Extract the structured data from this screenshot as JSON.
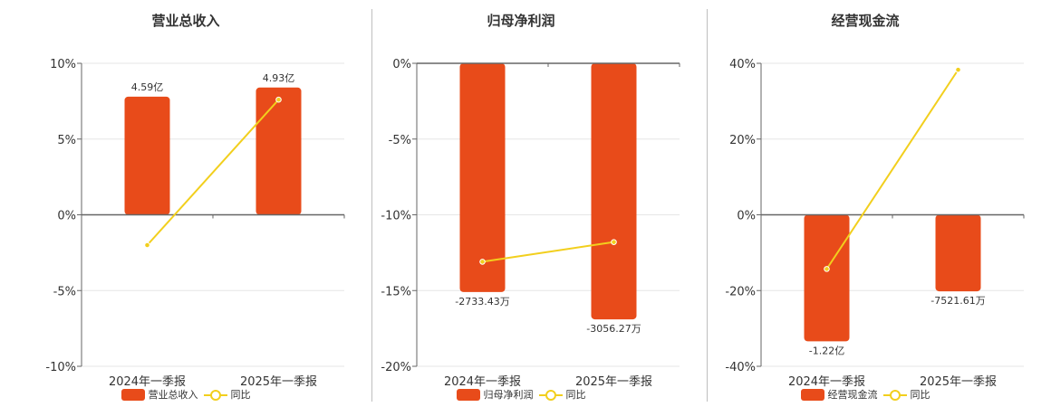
{
  "colors": {
    "bar": "#e84b1a",
    "line": "#f2cf1d",
    "axis": "#666666",
    "grid": "#e6e6e6"
  },
  "chart_data": [
    {
      "type": "bar",
      "title": "营业总收入",
      "categories": [
        "2024年一季报",
        "2025年一季报"
      ],
      "ylim": [
        -10,
        10
      ],
      "yticks": [
        "10%",
        "5%",
        "0%",
        "-5%",
        "-10%"
      ],
      "series": [
        {
          "name": "营业总收入",
          "type": "bar",
          "values": [
            7.8,
            8.4
          ],
          "labels": [
            "4.59亿",
            "4.93亿"
          ]
        },
        {
          "name": "同比",
          "type": "line",
          "values": [
            -2.0,
            7.6
          ]
        }
      ],
      "legend_position": "bottom",
      "grid": true
    },
    {
      "type": "bar",
      "title": "归母净利润",
      "categories": [
        "2024年一季报",
        "2025年一季报"
      ],
      "ylim": [
        -20,
        0
      ],
      "yticks": [
        "0%",
        "-5%",
        "-10%",
        "-15%",
        "-20%"
      ],
      "series": [
        {
          "name": "归母净利润",
          "type": "bar",
          "values": [
            -15.1,
            -16.9
          ],
          "labels": [
            "-2733.43万",
            "-3056.27万"
          ]
        },
        {
          "name": "同比",
          "type": "line",
          "values": [
            -13.1,
            -11.8
          ]
        }
      ],
      "legend_position": "bottom",
      "grid": true
    },
    {
      "type": "bar",
      "title": "经营现金流",
      "categories": [
        "2024年一季报",
        "2025年一季报"
      ],
      "ylim": [
        -40,
        40
      ],
      "yticks": [
        "40%",
        "20%",
        "0%",
        "-20%",
        "-40%"
      ],
      "series": [
        {
          "name": "经营现金流",
          "type": "bar",
          "values": [
            -33.4,
            -20.2
          ],
          "labels": [
            "-1.22亿",
            "-7521.61万"
          ]
        },
        {
          "name": "同比",
          "type": "line",
          "values": [
            -14.3,
            38.3
          ]
        }
      ],
      "legend_position": "bottom",
      "grid": true
    }
  ]
}
